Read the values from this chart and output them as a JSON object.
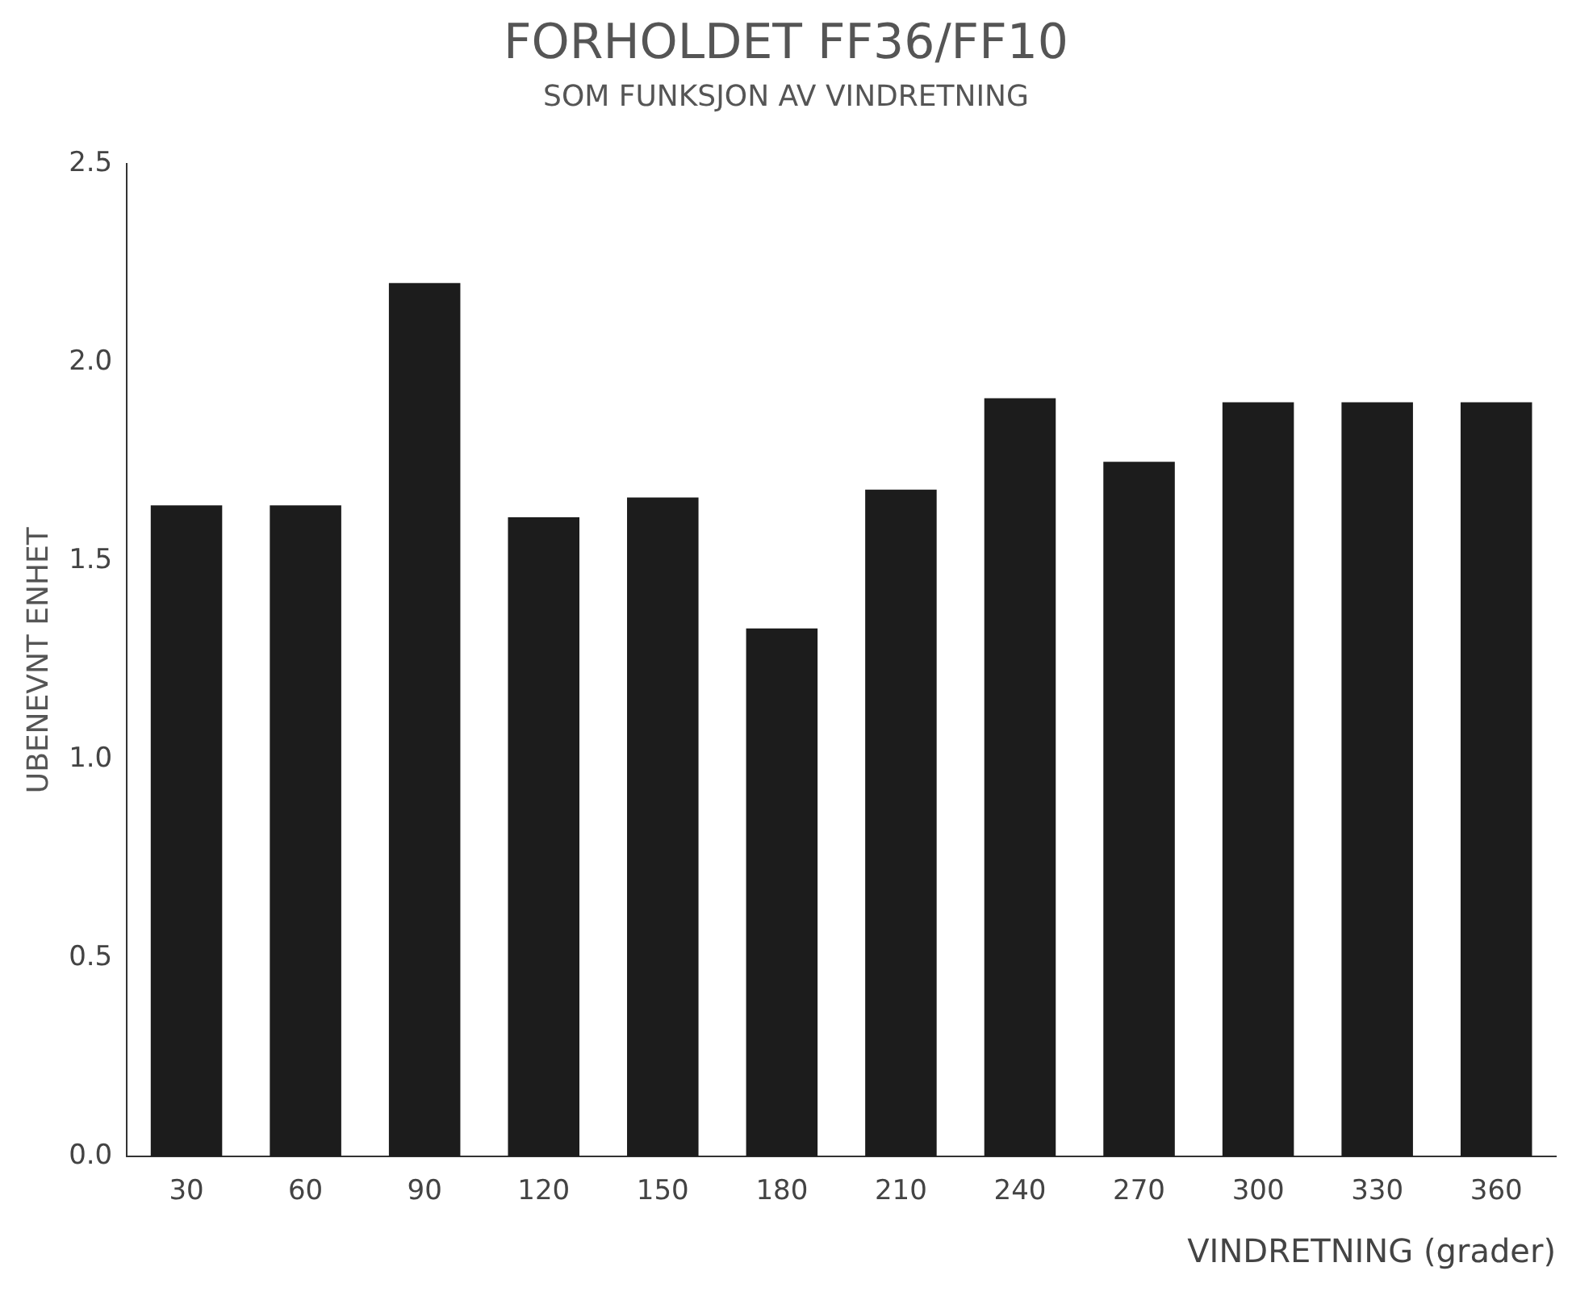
{
  "chart_data": {
    "type": "bar",
    "title": "FORHOLDET FF36/FF10",
    "subtitle": "SOM FUNKSJON AV VINDRETNING",
    "xlabel": "VINDRETNING (grader)",
    "ylabel": "UBENEVNT ENHET",
    "categories": [
      "30",
      "60",
      "90",
      "120",
      "150",
      "180",
      "210",
      "240",
      "270",
      "300",
      "330",
      "360"
    ],
    "values": [
      1.64,
      1.64,
      2.2,
      1.61,
      1.66,
      1.33,
      1.68,
      1.91,
      1.75,
      1.9,
      1.9,
      1.9
    ],
    "color": "#1c1c1c",
    "ylim": [
      0,
      2.5
    ],
    "yticks": [
      {
        "value": 0,
        "label": "0.0"
      },
      {
        "value": 0.5,
        "label": "0.5"
      },
      {
        "value": 1,
        "label": "1.0"
      },
      {
        "value": 1.5,
        "label": "1.5"
      },
      {
        "value": 2,
        "label": "2.0"
      },
      {
        "value": 2.5,
        "label": "2.5"
      }
    ],
    "grid": false,
    "legend": false
  }
}
